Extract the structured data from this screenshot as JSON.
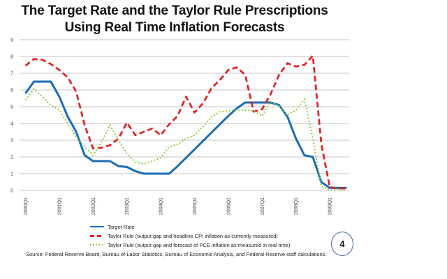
{
  "slide": {
    "title_line1": "The Target Rate and the Taylor Rule Prescriptions",
    "title_line2": "Using Real Time Inflation Forecasts",
    "source_note": "Source:  Federal Reserve Board, Bureau of Labor Statistics, Bureau of Economic Analysis, and Federal Reserve staff calculations.",
    "page_number": "4"
  },
  "chart_data": {
    "type": "line",
    "title": "The Target Rate and the Taylor Rule Prescriptions Using Real Time Inflation Forecasts",
    "xlabel": "",
    "ylabel": "",
    "ylim": [
      0,
      9
    ],
    "y_ticks": [
      0,
      1,
      2,
      3,
      4,
      5,
      6,
      7,
      8,
      9
    ],
    "grid": "horizontal",
    "grid_color": "#C6C6C6",
    "axis_label_color": "#3F3F3F",
    "legend_position": "bottom-left",
    "x": [
      "2000Q1",
      "2000Q2",
      "2000Q3",
      "2000Q4",
      "2001Q1",
      "2001Q2",
      "2001Q3",
      "2001Q4",
      "2002Q1",
      "2002Q2",
      "2002Q3",
      "2002Q4",
      "2003Q1",
      "2003Q2",
      "2003Q3",
      "2003Q4",
      "2004Q1",
      "2004Q2",
      "2004Q3",
      "2004Q4",
      "2005Q1",
      "2005Q2",
      "2005Q3",
      "2005Q4",
      "2006Q1",
      "2006Q2",
      "2006Q3",
      "2006Q4",
      "2007Q1",
      "2007Q2",
      "2007Q3",
      "2007Q4",
      "2008Q1",
      "2008Q2",
      "2008Q3",
      "2008Q4",
      "2009Q1",
      "2009Q2",
      "2009Q3"
    ],
    "x_axis_tick_labels": [
      "2000Q1",
      "2001Q1",
      "2002Q1",
      "2003Q1",
      "2004Q1",
      "2005Q1",
      "2006Q1",
      "2007Q1",
      "2008Q1",
      "2009Q1"
    ],
    "series": [
      {
        "name": "Target Rate",
        "style": "solid",
        "color": "#1B6CB5",
        "values": [
          5.8,
          6.5,
          6.5,
          6.5,
          5.6,
          4.4,
          3.5,
          2.1,
          1.75,
          1.75,
          1.75,
          1.45,
          1.4,
          1.15,
          1.0,
          1.0,
          1.0,
          1.0,
          1.45,
          1.95,
          2.45,
          2.95,
          3.45,
          3.95,
          4.45,
          4.9,
          5.25,
          5.25,
          5.25,
          5.25,
          5.1,
          4.4,
          3.1,
          2.1,
          2.0,
          0.5,
          0.15,
          0.15,
          0.15
        ]
      },
      {
        "name": "Taylor Rule (output gap and headline CPI inflation as currently measured)",
        "style": "dashed",
        "color": "#E02020",
        "values": [
          7.45,
          7.85,
          7.8,
          7.55,
          7.2,
          6.75,
          5.9,
          3.9,
          2.5,
          2.55,
          2.7,
          3.1,
          4.05,
          3.3,
          3.5,
          3.7,
          3.3,
          3.95,
          4.45,
          5.6,
          4.65,
          5.2,
          6.1,
          6.6,
          7.2,
          7.35,
          6.9,
          4.7,
          4.85,
          5.75,
          6.9,
          7.6,
          7.4,
          7.5,
          8.05,
          2.8,
          0.2,
          0.12,
          0.12
        ]
      },
      {
        "name": "Taylor Rule (output gap and forecast of PCE inflation as measured in real time)",
        "style": "dotted",
        "color": "#8CC83C",
        "values": [
          5.4,
          6.05,
          5.6,
          5.1,
          4.8,
          4.0,
          3.2,
          2.6,
          2.1,
          2.9,
          3.9,
          3.0,
          2.2,
          1.7,
          1.6,
          1.75,
          1.95,
          2.6,
          2.75,
          3.1,
          3.3,
          3.8,
          4.4,
          4.7,
          4.75,
          4.8,
          4.8,
          4.75,
          4.45,
          5.3,
          5.05,
          4.5,
          4.8,
          5.45,
          3.1,
          0.25,
          0.05,
          0.05,
          0.05
        ]
      }
    ]
  }
}
